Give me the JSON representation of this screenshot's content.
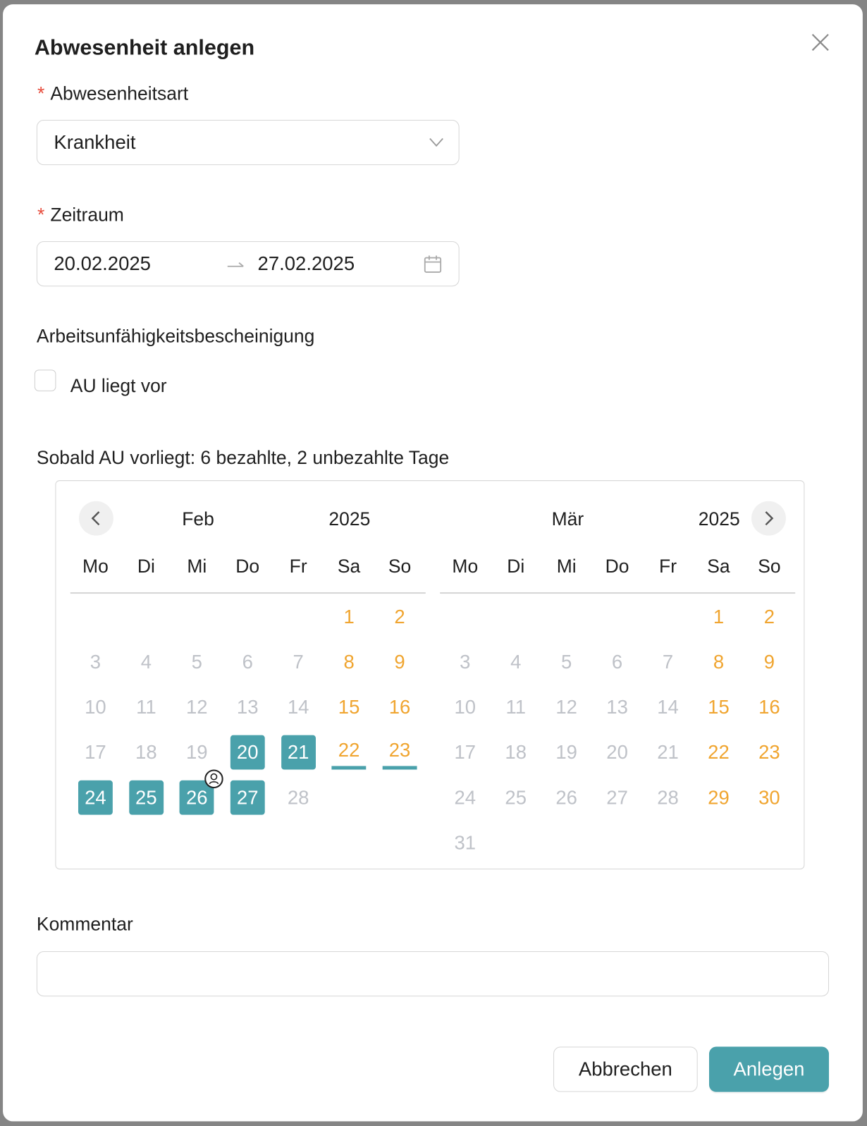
{
  "dialog": {
    "title": "Abwesenheit anlegen",
    "close_icon": "close-icon",
    "type_field": {
      "label": "Abwesenheitsart",
      "required_mark": "*",
      "value": "Krankheit"
    },
    "period_field": {
      "label": "Zeitraum",
      "required_mark": "*",
      "start": "20.02.2025",
      "end": "27.02.2025",
      "separator_icon": "arrow-right-icon",
      "icon": "calendar-icon"
    },
    "au_section": {
      "label": "Arbeitsunfähigkeitsbescheinigung",
      "checkbox_label": "AU liegt vor",
      "checked": false
    },
    "info_text": "Sobald AU vorliegt: 6 bezahlte, 2 unbezahlte Tage",
    "comment": {
      "label": "Kommentar",
      "value": ""
    },
    "cancel_label": "Abbrechen",
    "submit_label": "Anlegen"
  },
  "calendar": {
    "colors": {
      "selected": "#4aa1ab",
      "weekend": "#f0a530",
      "muted": "#bfc2c8"
    },
    "weekdays": [
      "Mo",
      "Di",
      "Mi",
      "Do",
      "Fr",
      "Sa",
      "So"
    ],
    "months": [
      {
        "name": "Feb",
        "year": "2025",
        "first_weekday": "Sa",
        "days": 28,
        "selected": [
          20,
          21,
          24,
          25,
          26,
          27
        ],
        "underlined": [
          22,
          23
        ],
        "marker_day": 26,
        "marker_icon": "user-circle-icon"
      },
      {
        "name": "Mär",
        "year": "2025",
        "first_weekday": "Sa",
        "days": 31,
        "selected": [],
        "underlined": []
      }
    ]
  }
}
